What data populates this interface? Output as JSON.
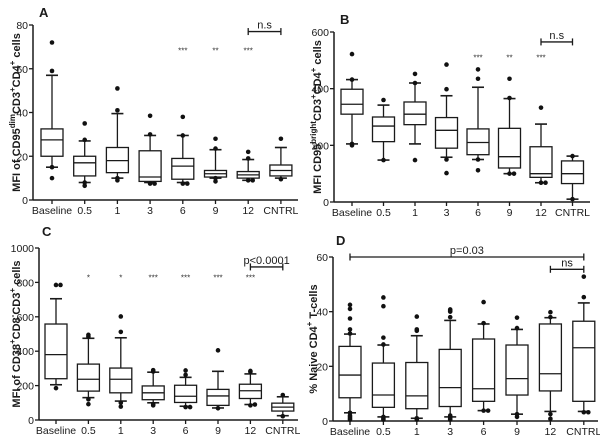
{
  "chart_data": [
    {
      "panel": "A",
      "type": "box",
      "ylabel": "MFI of CD95dimCD3+CD4+ cells",
      "ylabel_parts": [
        [
          "MFI of CD95",
          ""
        ],
        [
          "dim",
          "sup"
        ],
        [
          "CD3",
          ""
        ],
        [
          "+",
          "sup"
        ],
        [
          "CD4",
          ""
        ],
        [
          "+",
          "sup"
        ],
        [
          " cells",
          ""
        ]
      ],
      "ylim": [
        0,
        80
      ],
      "yticks": [
        0,
        20,
        40,
        60,
        80
      ],
      "categories": [
        "Baseline",
        "0.5",
        "1",
        "3",
        "6",
        "9",
        "12",
        "CNTRL"
      ],
      "boxes": [
        {
          "q1": 20,
          "median": 27.5,
          "q3": 32.5,
          "whisker_low": 15,
          "whisker_high": 57,
          "outliers": [
            10,
            15,
            59,
            72
          ]
        },
        {
          "q1": 11,
          "median": 17,
          "q3": 20,
          "whisker_low": 8,
          "whisker_high": 27,
          "outliers": [
            6.5,
            8,
            27.5,
            35
          ]
        },
        {
          "q1": 12.5,
          "median": 18,
          "q3": 24,
          "whisker_low": 10,
          "whisker_high": 39.5,
          "outliers": [
            9,
            10,
            41,
            51
          ]
        },
        {
          "q1": 8.5,
          "median": 10.5,
          "q3": 22.5,
          "whisker_low": 8,
          "whisker_high": 29.5,
          "outliers": [
            7.5,
            7.5,
            30,
            38.5
          ]
        },
        {
          "q1": 9.5,
          "median": 15.5,
          "q3": 19,
          "whisker_low": 8,
          "whisker_high": 29.5,
          "outliers": [
            7.5,
            7.5,
            29.5,
            38
          ]
        },
        {
          "q1": 10.5,
          "median": 12,
          "q3": 13.5,
          "whisker_low": 10,
          "whisker_high": 23,
          "outliers": [
            8.5,
            10,
            23.5,
            28
          ]
        },
        {
          "q1": 10,
          "median": 11.5,
          "q3": 13,
          "whisker_low": 9,
          "whisker_high": 18.5,
          "outliers": [
            9,
            9,
            19,
            22
          ]
        },
        {
          "q1": 11,
          "median": 13.5,
          "q3": 16,
          "whisker_low": 10,
          "whisker_high": 24,
          "outliers": [
            9.5,
            28
          ]
        }
      ],
      "significance": [
        "",
        "",
        "",
        "",
        "***",
        "**",
        "***",
        ""
      ],
      "sig_level": 67,
      "brackets": [
        {
          "from": 6,
          "to": 7,
          "label": "n.s",
          "level": 77
        }
      ]
    },
    {
      "panel": "B",
      "type": "box",
      "ylabel": "MFI CD95brightCD3+CD4+ cells",
      "ylabel_parts": [
        [
          "MFI CD95",
          ""
        ],
        [
          "bright",
          "sup"
        ],
        [
          "CD3",
          ""
        ],
        [
          "+",
          "sup"
        ],
        [
          "CD4",
          ""
        ],
        [
          "+",
          "sup"
        ],
        [
          " cells",
          ""
        ]
      ],
      "ylim": [
        0,
        600
      ],
      "yticks": [
        0,
        200,
        400,
        600
      ],
      "categories": [
        "Baseline",
        "0.5",
        "1",
        "3",
        "6",
        "9",
        "12",
        "CNTRL"
      ],
      "boxes": [
        {
          "q1": 310,
          "median": 345,
          "q3": 398,
          "whisker_low": 205,
          "whisker_high": 432,
          "outliers": [
            200,
            205,
            432,
            522
          ]
        },
        {
          "q1": 213,
          "median": 268,
          "q3": 300,
          "whisker_low": 148,
          "whisker_high": 342,
          "outliers": [
            148,
            360
          ]
        },
        {
          "q1": 273,
          "median": 310,
          "q3": 353,
          "whisker_low": 205,
          "whisker_high": 420,
          "outliers": [
            148,
            420,
            452
          ]
        },
        {
          "q1": 190,
          "median": 253,
          "q3": 298,
          "whisker_low": 158,
          "whisker_high": 375,
          "outliers": [
            102,
            150,
            398,
            485
          ]
        },
        {
          "q1": 167,
          "median": 210,
          "q3": 258,
          "whisker_low": 150,
          "whisker_high": 405,
          "outliers": [
            112,
            150,
            435,
            468
          ]
        },
        {
          "q1": 120,
          "median": 160,
          "q3": 260,
          "whisker_low": 100,
          "whisker_high": 365,
          "outliers": [
            100,
            100,
            367,
            435
          ]
        },
        {
          "q1": 87,
          "median": 100,
          "q3": 195,
          "whisker_low": 68,
          "whisker_high": 275,
          "outliers": [
            68,
            68,
            333
          ]
        },
        {
          "q1": 65,
          "median": 100,
          "q3": 145,
          "whisker_low": 10,
          "whisker_high": 162,
          "outliers": [
            10,
            162
          ]
        }
      ],
      "significance": [
        "",
        "",
        "",
        "",
        "***",
        "**",
        "***",
        ""
      ],
      "sig_level": 500,
      "brackets": [
        {
          "from": 6,
          "to": 7,
          "label": "n.s",
          "level": 565
        }
      ]
    },
    {
      "panel": "C",
      "type": "box",
      "ylabel": "MFI of CD38+CD8-CD3+ cells",
      "ylabel_parts": [
        [
          "MFI of CD38",
          ""
        ],
        [
          "+",
          "sup"
        ],
        [
          "CD8",
          ""
        ],
        [
          "-",
          "sup"
        ],
        [
          "CD3",
          ""
        ],
        [
          "+",
          "sup"
        ],
        [
          " cells",
          ""
        ]
      ],
      "ylim": [
        0,
        1000
      ],
      "yticks": [
        0,
        200,
        400,
        600,
        800,
        1000
      ],
      "categories": [
        "Baseline",
        "0.5",
        "1",
        "3",
        "6",
        "9",
        "12",
        "CNTRL"
      ],
      "boxes": [
        {
          "q1": 240,
          "median": 380,
          "q3": 558,
          "whisker_low": 205,
          "whisker_high": 705,
          "outliers": [
            185,
            785,
            785
          ]
        },
        {
          "q1": 168,
          "median": 237,
          "q3": 325,
          "whisker_low": 130,
          "whisker_high": 475,
          "outliers": [
            92,
            120,
            485,
            495
          ]
        },
        {
          "q1": 158,
          "median": 237,
          "q3": 302,
          "whisker_low": 110,
          "whisker_high": 478,
          "outliers": [
            78,
            100,
            512,
            602
          ]
        },
        {
          "q1": 118,
          "median": 158,
          "q3": 198,
          "whisker_low": 100,
          "whisker_high": 278,
          "outliers": [
            85,
            92,
            282,
            290
          ]
        },
        {
          "q1": 102,
          "median": 138,
          "q3": 202,
          "whisker_low": 80,
          "whisker_high": 248,
          "outliers": [
            75,
            75,
            262,
            288
          ]
        },
        {
          "q1": 85,
          "median": 140,
          "q3": 178,
          "whisker_low": 70,
          "whisker_high": 283,
          "outliers": [
            68,
            405
          ]
        },
        {
          "q1": 125,
          "median": 170,
          "q3": 208,
          "whisker_low": 90,
          "whisker_high": 268,
          "outliers": [
            85,
            90,
            280,
            285
          ]
        },
        {
          "q1": 52,
          "median": 75,
          "q3": 98,
          "whisker_low": 25,
          "whisker_high": 135,
          "outliers": [
            22,
            145
          ]
        }
      ],
      "significance": [
        "",
        "*",
        "*",
        "***",
        "***",
        "***",
        "***",
        ""
      ],
      "sig_level": 810,
      "brackets": [
        {
          "from": 6,
          "to": 7,
          "label": "p<0.0001",
          "level": 890
        }
      ]
    },
    {
      "panel": "D",
      "type": "box",
      "ylabel": "% Naive CD4+ T-cells",
      "ylabel_parts": [
        [
          "% Naive CD4",
          ""
        ],
        [
          "+",
          "sup"
        ],
        [
          " T-cells",
          ""
        ]
      ],
      "ylim": [
        0,
        60
      ],
      "yticks": [
        0,
        20,
        40,
        60
      ],
      "categories": [
        "Baseline",
        "0.5",
        "1",
        "3",
        "6",
        "9",
        "12",
        "CNTRL"
      ],
      "boxes": [
        {
          "q1": 8.5,
          "median": 16.8,
          "q3": 27.3,
          "whisker_low": 3,
          "whisker_high": 31.8,
          "outliers": [
            0.5,
            1,
            1.5,
            2,
            3,
            32,
            33.5,
            37.5,
            41,
            42.5
          ]
        },
        {
          "q1": 5,
          "median": 9.5,
          "q3": 21.2,
          "whisker_low": 1.5,
          "whisker_high": 27.8,
          "outliers": [
            0.5,
            1,
            1.5,
            28,
            30.5,
            42,
            45.2
          ]
        },
        {
          "q1": 4.5,
          "median": 9.2,
          "q3": 21.4,
          "whisker_low": 1,
          "whisker_high": 31.2,
          "outliers": [
            0.5,
            1,
            33,
            33.5,
            38.2
          ]
        },
        {
          "q1": 5.3,
          "median": 12.2,
          "q3": 26.2,
          "whisker_low": 1.5,
          "whisker_high": 36.8,
          "outliers": [
            0.5,
            1,
            1.5,
            2,
            38,
            40,
            40.5,
            40.8
          ]
        },
        {
          "q1": 7.2,
          "median": 11.8,
          "q3": 30,
          "whisker_low": 3.8,
          "whisker_high": 35.5,
          "outliers": [
            3.8,
            3.8,
            35.8,
            43.5
          ]
        },
        {
          "q1": 9.5,
          "median": 15.5,
          "q3": 27.8,
          "whisker_low": 2.5,
          "whisker_high": 33.5,
          "outliers": [
            1.5,
            2.5,
            34,
            37.8
          ]
        },
        {
          "q1": 11,
          "median": 17.3,
          "q3": 35.5,
          "whisker_low": 3.5,
          "whisker_high": 37.8,
          "outliers": [
            0.8,
            2.5,
            38,
            39.8
          ]
        },
        {
          "q1": 7.2,
          "median": 26.8,
          "q3": 36.5,
          "whisker_low": 3.5,
          "whisker_high": 43.2,
          "outliers": [
            3.2,
            3.2,
            45.3,
            52.8
          ]
        }
      ],
      "significance": [
        "",
        "",
        "",
        "",
        "",
        "",
        "",
        ""
      ],
      "sig_level": 0,
      "brackets": [
        {
          "from": 0,
          "to": 7,
          "label": "p=0.03",
          "level": 60
        },
        {
          "from": 6,
          "to": 7,
          "label": "ns",
          "level": 55.5
        }
      ]
    }
  ]
}
